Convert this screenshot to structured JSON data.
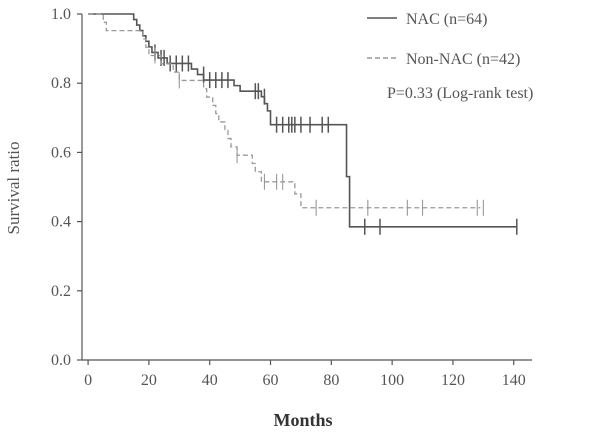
{
  "chart_data": {
    "type": "line",
    "subtype": "kaplan-meier step",
    "xlabel": "Months",
    "ylabel": "Survival ratio",
    "xlim": [
      -2,
      146
    ],
    "ylim": [
      0,
      1.0
    ],
    "x_ticks": [
      0,
      20,
      40,
      60,
      80,
      100,
      120,
      140
    ],
    "y_ticks": [
      "0.0",
      "0.2",
      "0.4",
      "0.6",
      "0.8",
      "1.0"
    ],
    "y_tick_values": [
      0.0,
      0.2,
      0.4,
      0.6,
      0.8,
      1.0
    ],
    "annotation": "P=0.33 (Log-rank test)",
    "legend_position": "top-right",
    "series": [
      {
        "name": "NAC (n=64)",
        "style": "solid",
        "color": "#555555",
        "steps": [
          [
            0,
            1.0
          ],
          [
            15,
            0.984
          ],
          [
            16,
            0.968
          ],
          [
            17,
            0.952
          ],
          [
            18,
            0.937
          ],
          [
            19,
            0.921
          ],
          [
            20,
            0.905
          ],
          [
            21,
            0.889
          ],
          [
            23,
            0.873
          ],
          [
            26,
            0.857
          ],
          [
            34,
            0.841
          ],
          [
            36,
            0.825
          ],
          [
            38,
            0.809
          ],
          [
            48,
            0.793
          ],
          [
            50,
            0.777
          ],
          [
            57,
            0.761
          ],
          [
            58,
            0.741
          ],
          [
            59,
            0.72
          ],
          [
            60,
            0.68
          ],
          [
            85,
            0.53
          ],
          [
            86,
            0.385
          ],
          [
            141,
            0.385
          ]
        ],
        "censored": [
          [
            22,
            0.889
          ],
          [
            24,
            0.873
          ],
          [
            25,
            0.873
          ],
          [
            27,
            0.857
          ],
          [
            29,
            0.857
          ],
          [
            31,
            0.857
          ],
          [
            33,
            0.857
          ],
          [
            38,
            0.825
          ],
          [
            40,
            0.809
          ],
          [
            42,
            0.809
          ],
          [
            44,
            0.809
          ],
          [
            46,
            0.809
          ],
          [
            55,
            0.777
          ],
          [
            56,
            0.777
          ],
          [
            58,
            0.761
          ],
          [
            62,
            0.68
          ],
          [
            64,
            0.68
          ],
          [
            66,
            0.68
          ],
          [
            67,
            0.68
          ],
          [
            68,
            0.68
          ],
          [
            70,
            0.68
          ],
          [
            73,
            0.68
          ],
          [
            77,
            0.68
          ],
          [
            79,
            0.68
          ],
          [
            91,
            0.385
          ],
          [
            96,
            0.385
          ],
          [
            141,
            0.385
          ]
        ]
      },
      {
        "name": "Non-NAC (n=42)",
        "style": "dashed",
        "color": "#999999",
        "steps": [
          [
            0,
            1.0
          ],
          [
            5,
            0.976
          ],
          [
            6,
            0.952
          ],
          [
            18,
            0.928
          ],
          [
            19,
            0.904
          ],
          [
            20,
            0.88
          ],
          [
            24,
            0.856
          ],
          [
            28,
            0.832
          ],
          [
            30,
            0.808
          ],
          [
            38,
            0.784
          ],
          [
            39,
            0.76
          ],
          [
            41,
            0.736
          ],
          [
            42,
            0.712
          ],
          [
            43,
            0.688
          ],
          [
            45,
            0.664
          ],
          [
            46,
            0.64
          ],
          [
            47,
            0.616
          ],
          [
            49,
            0.592
          ],
          [
            54,
            0.568
          ],
          [
            55,
            0.544
          ],
          [
            57,
            0.515
          ],
          [
            68,
            0.48
          ],
          [
            70,
            0.44
          ],
          [
            129,
            0.44
          ]
        ],
        "censored": [
          [
            22,
            0.88
          ],
          [
            30,
            0.808
          ],
          [
            49,
            0.592
          ],
          [
            58,
            0.515
          ],
          [
            62,
            0.515
          ],
          [
            64,
            0.515
          ],
          [
            75,
            0.44
          ],
          [
            92,
            0.44
          ],
          [
            105,
            0.44
          ],
          [
            110,
            0.44
          ],
          [
            128,
            0.44
          ],
          [
            130,
            0.44
          ]
        ]
      }
    ]
  }
}
